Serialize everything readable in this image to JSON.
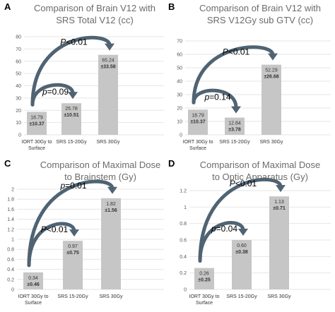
{
  "colors": {
    "bar": "#c6c6c6",
    "grid": "#e6e6e6",
    "arrow": "#4f6373",
    "title": "#6b6b6b"
  },
  "chart_data": [
    {
      "panel": "A",
      "type": "bar",
      "title_lines": [
        "Comparison of Brain V12 with",
        "SRS Total V12 (cc)"
      ],
      "categories": [
        [
          "IORT 30Gy to",
          "Surface"
        ],
        [
          "SRS 15-20Gy"
        ],
        [
          "SRS 30Gy"
        ]
      ],
      "values": [
        18.79,
        25.78,
        65.24
      ],
      "data_labels": [
        [
          "18.79",
          "±10.37"
        ],
        [
          "25.78",
          "±10.51"
        ],
        [
          "65.24",
          "±33.58"
        ]
      ],
      "ylim": [
        0,
        80
      ],
      "yticks": [
        "0",
        "10",
        "20",
        "30",
        "40",
        "50",
        "60",
        "70",
        "80"
      ],
      "grid": true,
      "annotations": [
        {
          "text_italic": "p",
          "text_rest": "=0.09",
          "from": 0,
          "to": 1
        },
        {
          "text_italic": "P",
          "text_rest": "<0.01",
          "from": 0,
          "to": 2
        }
      ]
    },
    {
      "panel": "B",
      "type": "bar",
      "title_lines": [
        "Comparison of Brain V12 with",
        "SRS V12Gy sub GTV (cc)"
      ],
      "categories": [
        [
          "IORT 30Gy to",
          "Surface"
        ],
        [
          "SRS 15-20Gy"
        ],
        [
          "SRS 30Gy"
        ]
      ],
      "values": [
        18.79,
        12.84,
        52.29
      ],
      "data_labels": [
        [
          "18.79",
          "±10.37"
        ],
        [
          "12.84",
          "±3.78"
        ],
        [
          "52.29",
          "±26.68"
        ]
      ],
      "ylim": [
        0,
        70
      ],
      "yticks": [
        "0",
        "10",
        "20",
        "30",
        "40",
        "50",
        "60",
        "70"
      ],
      "grid": true,
      "annotations": [
        {
          "text_italic": "p",
          "text_rest": "=0.14",
          "from": 0,
          "to": 1
        },
        {
          "text_italic": "P",
          "text_rest": "<0.01",
          "from": 0,
          "to": 2
        }
      ]
    },
    {
      "panel": "C",
      "type": "bar",
      "title_lines": [
        "Comparison of  Maximal Dose",
        "to Brainstem (Gy)"
      ],
      "categories": [
        [
          "IORT 30Gy to",
          "Surface"
        ],
        [
          "SRS 15-20Gy"
        ],
        [
          "SRS 30Gy"
        ]
      ],
      "values": [
        0.34,
        0.97,
        1.82
      ],
      "data_labels": [
        [
          "0.34",
          "±0.46"
        ],
        [
          "0.97",
          "±0.75"
        ],
        [
          "1.82",
          "±1.56"
        ]
      ],
      "ylim": [
        0,
        2
      ],
      "yticks": [
        "0",
        "0.2",
        "0.4",
        "0.6",
        "0.8",
        "1",
        "1.2",
        "1.4",
        "1.6",
        "1.8",
        "2"
      ],
      "grid": true,
      "annotations": [
        {
          "text_italic": "P",
          "text_rest": "<0.01",
          "from": 0,
          "to": 1
        },
        {
          "text_italic": "p",
          "text_rest": "=0.01",
          "from": 0,
          "to": 2
        }
      ]
    },
    {
      "panel": "D",
      "type": "bar",
      "title_lines": [
        "Comparison of Maximal Dose",
        "to Optic Apparatus (Gy)"
      ],
      "categories": [
        [
          "IORT 30Gy to",
          "Surface"
        ],
        [
          "SRS 15-20Gy"
        ],
        [
          "SRS 30Gy"
        ]
      ],
      "values": [
        0.26,
        0.6,
        1.13
      ],
      "data_labels": [
        [
          "0.26",
          "±0.25"
        ],
        [
          "0.60",
          "±0.38"
        ],
        [
          "1.13",
          "±0.71"
        ]
      ],
      "ylim": [
        0,
        1.2
      ],
      "yticks": [
        "0",
        "0.2",
        "0.4",
        "0.6",
        "0.8",
        "1",
        "1.2"
      ],
      "grid": true,
      "annotations": [
        {
          "text_italic": "p",
          "text_rest": "=0.04",
          "from": 0,
          "to": 1
        },
        {
          "text_italic": "P",
          "text_rest": "<0.01",
          "from": 0,
          "to": 2
        }
      ]
    }
  ]
}
